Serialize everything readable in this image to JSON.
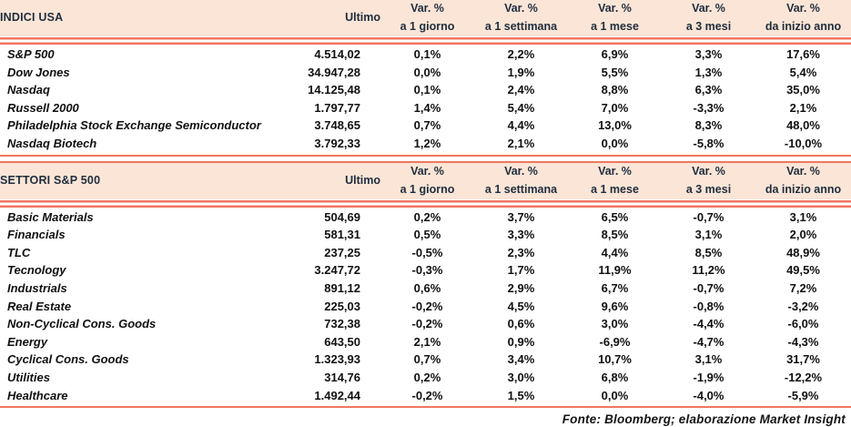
{
  "colors": {
    "coral": "#ef7660",
    "band": "#fbe5d6",
    "head": "#1e2d3e",
    "text": "#101010"
  },
  "footer": "Fonte: Bloomberg; elaborazione Market Insight",
  "chart_data": [
    {
      "type": "table",
      "title": "INDICI USA",
      "ultimo_label": "Ultimo",
      "var_label": "Var. %",
      "periods": [
        "a 1 giorno",
        "a 1 settimana",
        "a 1 mese",
        "a 3 mesi",
        "da inizio anno"
      ],
      "rows": [
        {
          "name": "S&P 500",
          "ultimo": "4.514,02",
          "vars": [
            "0,1%",
            "2,2%",
            "6,9%",
            "3,3%",
            "17,6%"
          ]
        },
        {
          "name": "Dow Jones",
          "ultimo": "34.947,28",
          "vars": [
            "0,0%",
            "1,9%",
            "5,5%",
            "1,3%",
            "5,4%"
          ]
        },
        {
          "name": "Nasdaq",
          "ultimo": "14.125,48",
          "vars": [
            "0,1%",
            "2,4%",
            "8,8%",
            "6,3%",
            "35,0%"
          ]
        },
        {
          "name": "Russell 2000",
          "ultimo": "1.797,77",
          "vars": [
            "1,4%",
            "5,4%",
            "7,0%",
            "-3,3%",
            "2,1%"
          ]
        },
        {
          "name": "Philadelphia Stock Exchange Semiconductor",
          "ultimo": "3.748,65",
          "vars": [
            "0,7%",
            "4,4%",
            "13,0%",
            "8,3%",
            "48,0%"
          ]
        },
        {
          "name": "Nasdaq Biotech",
          "ultimo": "3.792,33",
          "vars": [
            "1,2%",
            "2,1%",
            "0,0%",
            "-5,8%",
            "-10,0%"
          ]
        }
      ]
    },
    {
      "type": "table",
      "title": "SETTORI S&P 500",
      "ultimo_label": "Ultimo",
      "var_label": "Var. %",
      "periods": [
        "a 1 giorno",
        "a 1 settimana",
        "a 1 mese",
        "a 3 mesi",
        "da inizio anno"
      ],
      "rows": [
        {
          "name": "Basic Materials",
          "ultimo": "504,69",
          "vars": [
            "0,2%",
            "3,7%",
            "6,5%",
            "-0,7%",
            "3,1%"
          ]
        },
        {
          "name": "Financials",
          "ultimo": "581,31",
          "vars": [
            "0,5%",
            "3,3%",
            "8,5%",
            "3,1%",
            "2,0%"
          ]
        },
        {
          "name": "TLC",
          "ultimo": "237,25",
          "vars": [
            "-0,5%",
            "2,3%",
            "4,4%",
            "8,5%",
            "48,9%"
          ]
        },
        {
          "name": "Tecnology",
          "ultimo": "3.247,72",
          "vars": [
            "-0,3%",
            "1,7%",
            "11,9%",
            "11,2%",
            "49,5%"
          ]
        },
        {
          "name": "Industrials",
          "ultimo": "891,12",
          "vars": [
            "0,6%",
            "2,9%",
            "6,7%",
            "-0,7%",
            "7,2%"
          ]
        },
        {
          "name": "Real Estate",
          "ultimo": "225,03",
          "vars": [
            "-0,2%",
            "4,5%",
            "9,6%",
            "-0,8%",
            "-3,2%"
          ]
        },
        {
          "name": "Non-Cyclical Cons. Goods",
          "ultimo": "732,38",
          "vars": [
            "-0,2%",
            "0,6%",
            "3,0%",
            "-4,4%",
            "-6,0%"
          ]
        },
        {
          "name": "Energy",
          "ultimo": "643,50",
          "vars": [
            "2,1%",
            "0,9%",
            "-6,9%",
            "-4,7%",
            "-4,3%"
          ]
        },
        {
          "name": "Cyclical Cons. Goods",
          "ultimo": "1.323,93",
          "vars": [
            "0,7%",
            "3,4%",
            "10,7%",
            "3,1%",
            "31,7%"
          ]
        },
        {
          "name": "Utilities",
          "ultimo": "314,76",
          "vars": [
            "0,2%",
            "3,0%",
            "6,8%",
            "-1,9%",
            "-12,2%"
          ]
        },
        {
          "name": "Healthcare",
          "ultimo": "1.492,44",
          "vars": [
            "-0,2%",
            "1,5%",
            "0,0%",
            "-4,0%",
            "-5,9%"
          ]
        }
      ]
    }
  ]
}
